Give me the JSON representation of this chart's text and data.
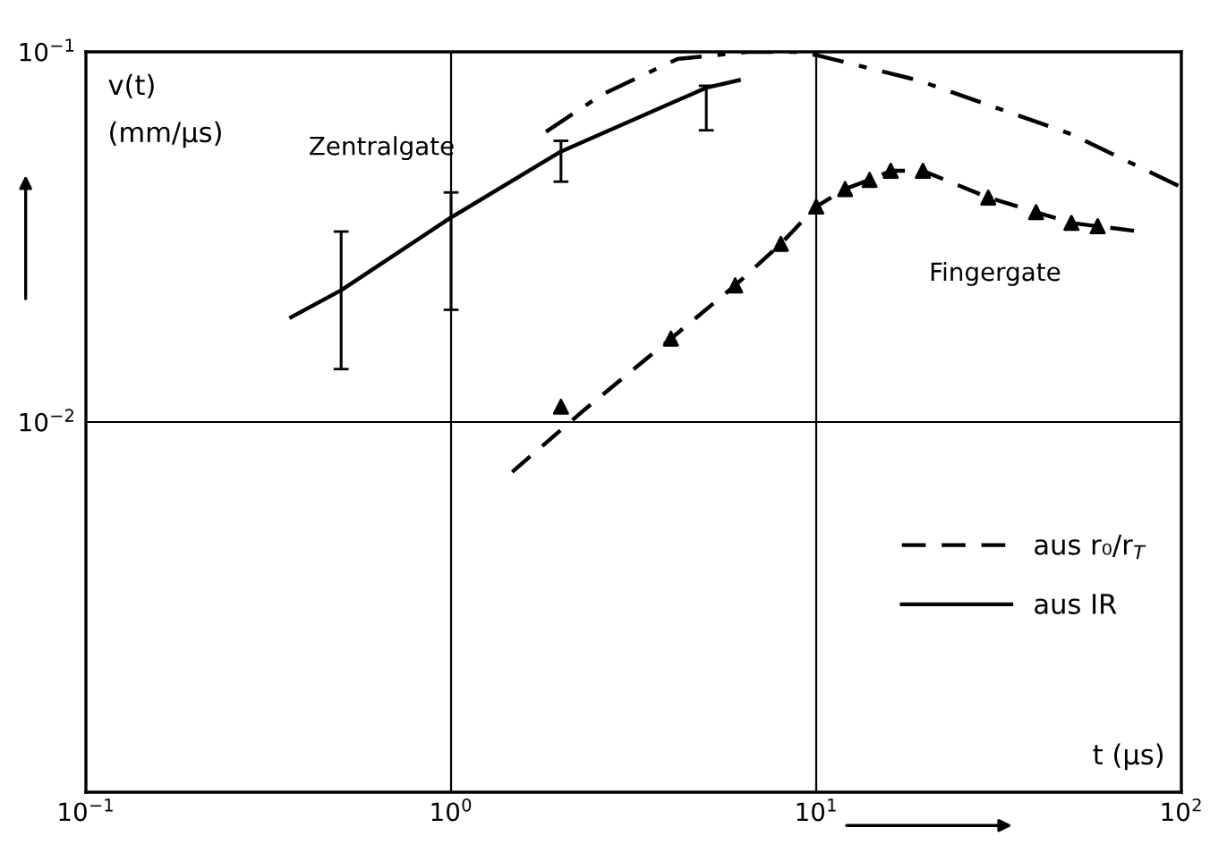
{
  "chart_data": {
    "type": "line",
    "xlabel": "t (µs)",
    "ylabel": "v(t)\n(mm/µs)",
    "log": "xy",
    "grid": true,
    "legend": "lower right",
    "marker": "none",
    "xlim": [
      0.1,
      100
    ],
    "ylim": [
      0.001,
      0.1
    ],
    "xticks": [
      {
        "value": 0.1,
        "label": "10$^{−1}$"
      },
      {
        "value": 1,
        "label": "10$^{0}$"
      },
      {
        "value": 10,
        "label": "10$^{1}$"
      },
      {
        "value": 100,
        "label": "10$^{2}$"
      }
    ],
    "yticks": [
      {
        "value": 0.01,
        "label": "10$^{−2}$"
      },
      {
        "value": 0.1,
        "label": "10$^{−1}$"
      }
    ],
    "series": [
      {
        "color": "#000000",
        "line_style": "dashdot",
        "x": [
          1.82,
          2.59,
          4.17,
          6.5,
          8.75,
          10,
          19,
          49.8,
          100
        ],
        "values": [
          0.0608,
          0.0767,
          0.0957,
          0.1,
          0.1,
          0.098,
          0.0838,
          0.06,
          0.0431
        ]
      },
      {
        "name": "aus r₀/r$_{T}$",
        "color": "#000000",
        "line_style": "dashed",
        "x": [
          1.47,
          2.32,
          4,
          6,
          8,
          10,
          12,
          14,
          16,
          19.6,
          29.6,
          40,
          50,
          59,
          77
        ],
        "values": [
          0.00733,
          0.0108,
          0.0168,
          0.0234,
          0.0303,
          0.0382,
          0.0426,
          0.0451,
          0.0477,
          0.0477,
          0.0404,
          0.0369,
          0.0345,
          0.0338,
          0.0327
        ]
      },
      {
        "type": "scatter",
        "marker": "triangle",
        "color": "#000000",
        "x": [
          2,
          4,
          6,
          8,
          10,
          12,
          14,
          16,
          19.6,
          29.6,
          40,
          50,
          59
        ],
        "values": [
          0.011,
          0.0168,
          0.0234,
          0.0303,
          0.0382,
          0.0426,
          0.0451,
          0.0477,
          0.0477,
          0.0404,
          0.0369,
          0.0345,
          0.0338
        ]
      },
      {
        "name": "aus IR",
        "color": "#000000",
        "line_style": "solid",
        "x": [
          0.365,
          0.5,
          1,
          2,
          5,
          6.14
        ],
        "values": [
          0.0192,
          0.0227,
          0.0357,
          0.0538,
          0.08,
          0.0838
        ],
        "errors": [
          null,
          [
            0.0139,
            0.0327
          ],
          [
            0.0201,
            0.0417
          ],
          [
            0.0446,
            0.0575
          ],
          [
            0.0614,
            0.081
          ],
          null
        ]
      }
    ],
    "annotations": [
      "Zentralgate",
      "Fingergate"
    ]
  }
}
